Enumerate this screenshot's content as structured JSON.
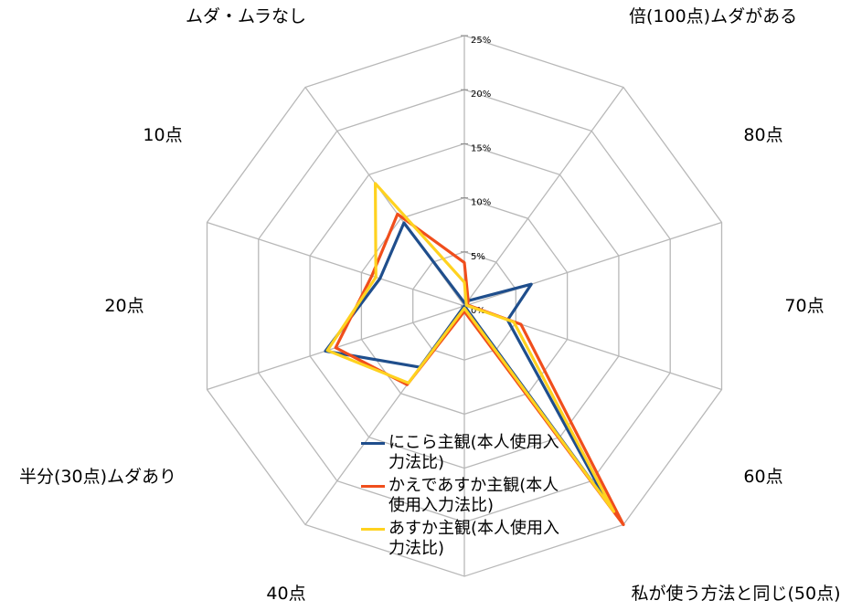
{
  "chart_data": {
    "type": "radar",
    "categories": [
      "倍(100点)ムダがある",
      "80点",
      "70点",
      "60点",
      "私が使う方法と同じ(50点)",
      "40点",
      "半分(30点)ムダあり",
      "20点",
      "10点",
      "ムダ・ムラなし"
    ],
    "axis": {
      "min": 0,
      "max": 25,
      "step": 5,
      "unit": "%",
      "tick_labels": [
        "0%",
        "5%",
        "10%",
        "15%",
        "20%",
        "25%"
      ]
    },
    "grid": true,
    "legend_position": "bottom-center",
    "series": [
      {
        "name": "にこら主観(本人使用入力法比)",
        "color": "#1f4e8c",
        "values": [
          0.3,
          0.6,
          6.5,
          4.2,
          22.5,
          0.0,
          7.0,
          13.5,
          8.2,
          9.5
        ]
      },
      {
        "name": "かえであすか主観(本人使用入力法比)",
        "color": "#f04e1c",
        "values": [
          4.0,
          0.6,
          0.3,
          5.5,
          25.0,
          0.5,
          9.0,
          12.5,
          9.0,
          10.5
        ]
      },
      {
        "name": "あすか主観(本人使用入力法比)",
        "color": "#ffd21f",
        "values": [
          2.2,
          0.3,
          0.2,
          4.8,
          23.5,
          0.2,
          8.8,
          13.3,
          8.6,
          14.0
        ]
      }
    ]
  }
}
